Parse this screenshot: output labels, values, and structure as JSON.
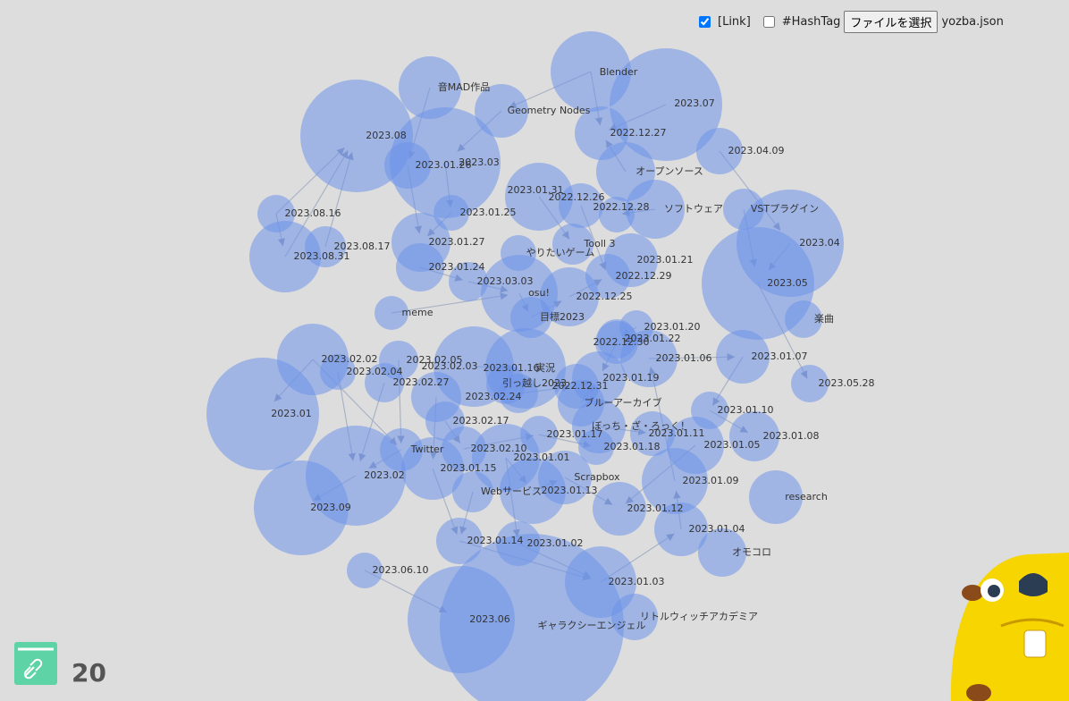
{
  "controls": {
    "link_label": "[Link]",
    "link_checked": true,
    "hashtag_label": "#HashTag",
    "hashtag_checked": false,
    "file_button": "ファイルを選択",
    "file_name": "yozba.json"
  },
  "graph": {
    "nodes": [
      {
        "label": "Blender"
      },
      {
        "label": "2023.07"
      },
      {
        "label": "音MAD作品"
      },
      {
        "label": "Geometry Nodes"
      },
      {
        "label": "2023.08"
      },
      {
        "label": "2022.12.27"
      },
      {
        "label": "2023.04.09"
      },
      {
        "label": "2023.01.26"
      },
      {
        "label": "2023.03"
      },
      {
        "label": "オープンソース"
      },
      {
        "label": "2023.01.31"
      },
      {
        "label": "2022.12.26"
      },
      {
        "label": "ソフトウェア"
      },
      {
        "label": "VSTプラグイン"
      },
      {
        "label": "2023.08.16"
      },
      {
        "label": "2022.12.28"
      },
      {
        "label": "2023.01.25"
      },
      {
        "label": "2023.04"
      },
      {
        "label": "Tooll 3"
      },
      {
        "label": "2023.01.27"
      },
      {
        "label": "2023.08.17"
      },
      {
        "label": "やりたいゲーム"
      },
      {
        "label": "2023.08.31"
      },
      {
        "label": "2023.01.21"
      },
      {
        "label": "2023.01.24"
      },
      {
        "label": "2022.12.29"
      },
      {
        "label": "2023.03.03"
      },
      {
        "label": "2023.05"
      },
      {
        "label": "osu!"
      },
      {
        "label": "2022.12.25"
      },
      {
        "label": "meme"
      },
      {
        "label": "目標2023"
      },
      {
        "label": "楽曲"
      },
      {
        "label": "2023.01.20"
      },
      {
        "label": "2022.12.30"
      },
      {
        "label": "2023.01.22"
      },
      {
        "label": "2023.02.02"
      },
      {
        "label": "2023.02.05"
      },
      {
        "label": "2023.01.06"
      },
      {
        "label": "2023.01.07"
      },
      {
        "label": "2023.02.04"
      },
      {
        "label": "2023.02.03"
      },
      {
        "label": "2023.01.16"
      },
      {
        "label": "実況"
      },
      {
        "label": "2023.01.19"
      },
      {
        "label": "2023.05.28"
      },
      {
        "label": "2023.02.27"
      },
      {
        "label": "引っ越し2023"
      },
      {
        "label": "2022.12.31"
      },
      {
        "label": "2023.01"
      },
      {
        "label": "2023.02.24"
      },
      {
        "label": "ブルーアーカイブ"
      },
      {
        "label": "2023.01.10"
      },
      {
        "label": "2023.02.17"
      },
      {
        "label": "ぼっち・ざ・ろっく！"
      },
      {
        "label": "2023.01.11"
      },
      {
        "label": "2023.01.17"
      },
      {
        "label": "2023.01.08"
      },
      {
        "label": "2023.01.05"
      },
      {
        "label": "2023.01.18"
      },
      {
        "label": "Twitter"
      },
      {
        "label": "2023.02.10"
      },
      {
        "label": "2023.01.01"
      },
      {
        "label": "2023.02"
      },
      {
        "label": "2023.01.15"
      },
      {
        "label": "Scrapbox"
      },
      {
        "label": "2023.01.09"
      },
      {
        "label": "research"
      },
      {
        "label": "Webサービス"
      },
      {
        "label": "2023.01.13"
      },
      {
        "label": "2023.09"
      },
      {
        "label": "2023.01.12"
      },
      {
        "label": "2023.01.04"
      },
      {
        "label": "2023.01.14"
      },
      {
        "label": "2023.01.02"
      },
      {
        "label": "オモコロ"
      },
      {
        "label": "2023.06.10"
      },
      {
        "label": "2023.01.03"
      },
      {
        "label": "2023.06"
      },
      {
        "label": "リトルウィッチアカデミア"
      },
      {
        "label": "ギャラクシーエンジェル"
      }
    ]
  },
  "footer": {
    "count": 20
  }
}
